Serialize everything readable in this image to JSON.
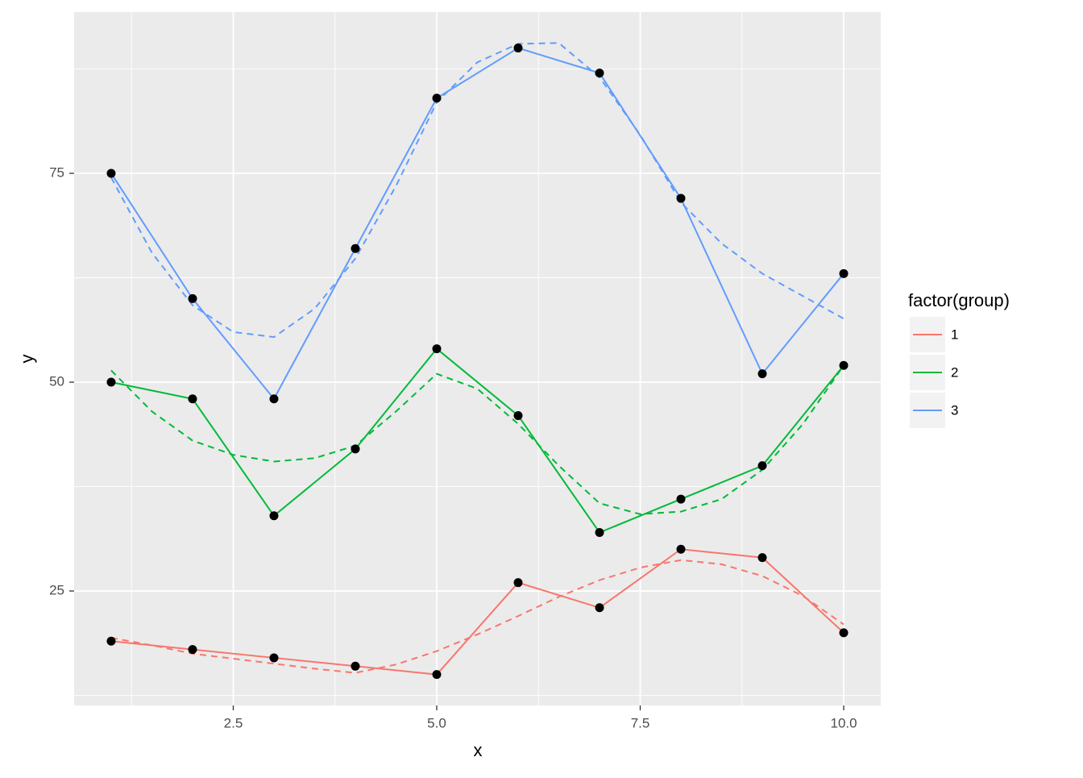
{
  "chart_data": {
    "type": "line",
    "x_label": "x",
    "y_label": "y",
    "legend_title": "factor(group)",
    "legend": "right",
    "grid": true,
    "point_color": "#000000",
    "x": [
      1,
      2,
      3,
      4,
      5,
      6,
      7,
      8,
      9,
      10
    ],
    "series": [
      {
        "name": "1",
        "color": "#f8766d",
        "values": [
          19,
          18,
          17,
          16,
          15,
          26,
          23,
          30,
          29,
          20
        ]
      },
      {
        "name": "2",
        "color": "#00ba38",
        "values": [
          50,
          48,
          34,
          42,
          54,
          46,
          32,
          36,
          40,
          52
        ]
      },
      {
        "name": "3",
        "color": "#619cff",
        "values": [
          75,
          60,
          48,
          66,
          84,
          90,
          87,
          72,
          51,
          63
        ]
      }
    ],
    "smooth": {
      "x": [
        1,
        1.5,
        2,
        2.5,
        3,
        3.5,
        4,
        4.5,
        5,
        5.5,
        6,
        6.5,
        7,
        7.5,
        8,
        8.5,
        9,
        9.5,
        10
      ],
      "series": [
        {
          "color": "#f8766d",
          "values": [
            19.4,
            18.5,
            17.5,
            16.9,
            16.3,
            15.7,
            15.2,
            16.2,
            17.8,
            19.8,
            22,
            24.3,
            26.3,
            27.8,
            28.7,
            28.2,
            26.8,
            24.4,
            21
          ]
        },
        {
          "color": "#00ba38",
          "values": [
            51.4,
            46.5,
            43,
            41.3,
            40.5,
            40.9,
            42.4,
            46.5,
            51,
            49.2,
            45,
            40,
            35.5,
            34.2,
            34.5,
            36,
            39.5,
            45,
            52
          ]
        },
        {
          "color": "#619cff",
          "values": [
            74.5,
            65.5,
            59.2,
            56,
            55.4,
            58.8,
            64.8,
            73.5,
            83.5,
            88.3,
            90.5,
            90.6,
            86.5,
            79.6,
            71.5,
            66.6,
            63,
            60.3,
            57.6
          ]
        }
      ]
    },
    "xlim": [
      0.545,
      10.455
    ],
    "ylim": [
      11.3,
      94.3
    ],
    "xticks": [
      2.5,
      {
        "value": 5,
        "label": "5.0"
      },
      7.5,
      {
        "value": 10,
        "label": "10.0"
      }
    ],
    "yticks": [
      25,
      50,
      75
    ],
    "xminor": [
      1.25,
      3.75,
      6.25,
      8.75
    ],
    "yminor": [
      12.5,
      37.5,
      62.5,
      87.5
    ]
  }
}
